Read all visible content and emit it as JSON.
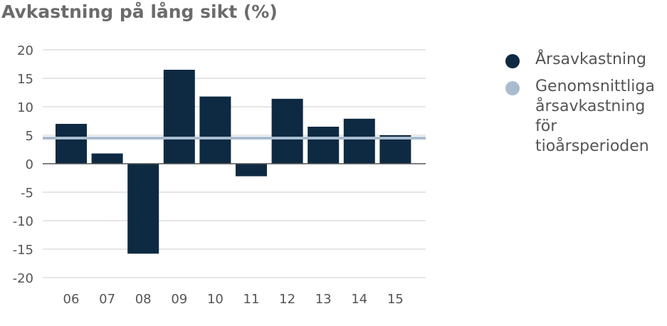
{
  "chart_data": {
    "type": "bar",
    "title": "Avkastning på lång sikt (%)",
    "categories": [
      "06",
      "07",
      "08",
      "09",
      "10",
      "11",
      "12",
      "13",
      "14",
      "15"
    ],
    "series": [
      {
        "name": "Årsavkastning",
        "values": [
          7.0,
          1.8,
          -15.8,
          16.5,
          11.8,
          -2.2,
          11.4,
          6.5,
          7.9,
          5.0
        ]
      }
    ],
    "reference_line": {
      "name": "Genomsnittliga årsavkastning för tioårsperioden",
      "value": 4.5
    },
    "ylim": [
      -20,
      20
    ],
    "yticks": [
      "20",
      "15",
      "10",
      "5",
      "0",
      "-5",
      "-10",
      "-15",
      "-20"
    ],
    "ytick_values": [
      20,
      15,
      10,
      5,
      0,
      -5,
      -10,
      -15,
      -20
    ],
    "grid": true,
    "legend_position": "right",
    "colors": {
      "bar": "#0d2a42",
      "reference": "#a9bccf",
      "grid": "#dddddd",
      "axis": "#555555"
    }
  }
}
